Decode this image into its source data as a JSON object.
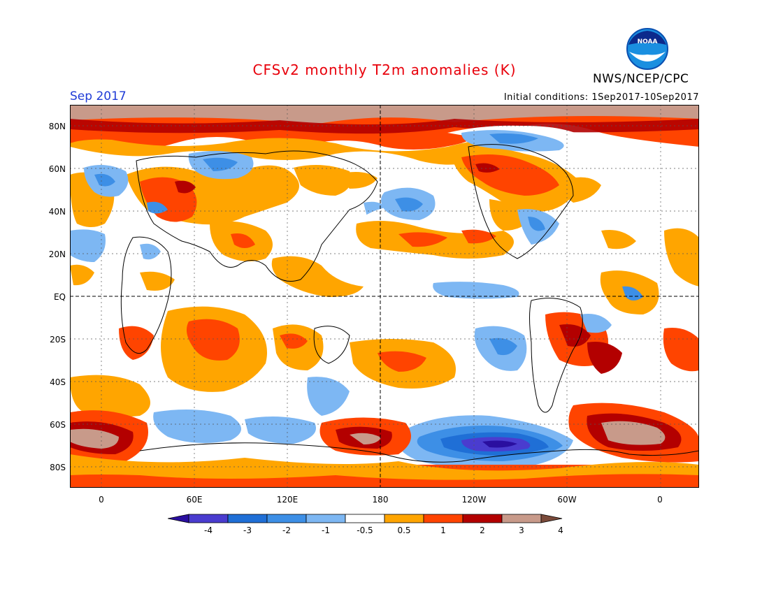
{
  "header": {
    "title": "CFSv2 monthly T2m anomalies (K)",
    "agency": "NWS/NCEP/CPC",
    "logo_text": "NOAA",
    "month": "Sep 2017",
    "initial_conditions": "Initial conditions: 1Sep2017-10Sep2017"
  },
  "axes": {
    "y_labels": [
      "80N",
      "60N",
      "40N",
      "20N",
      "EQ",
      "20S",
      "40S",
      "60S",
      "80S"
    ],
    "x_labels": [
      "0",
      "60E",
      "120E",
      "180",
      "120W",
      "60W",
      "0"
    ]
  },
  "colorbar": {
    "ticks": [
      "-4",
      "-3",
      "-2",
      "-1",
      "-0.5",
      "0.5",
      "1",
      "2",
      "3",
      "4"
    ],
    "colors": [
      "#2a0fa0",
      "#4a3ccf",
      "#1f6fd6",
      "#3d8fe6",
      "#7db7f3",
      "#ffffff",
      "#ffa500",
      "#ff4400",
      "#b30000",
      "#c89a8a",
      "#7a4a3a"
    ]
  },
  "palette": {
    "title": "#e8000b",
    "month": "#1f3bd6",
    "cold_extreme": "#2a0fa0",
    "cold_strong": "#4a3ccf",
    "cold_moderate": "#1f6fd6",
    "cold_weak": "#3d8fe6",
    "cold_slight": "#7db7f3",
    "warm_slight": "#ffa500",
    "warm_moderate": "#ff4400",
    "warm_strong": "#b30000",
    "warm_extreme": "#c89a8a"
  }
}
